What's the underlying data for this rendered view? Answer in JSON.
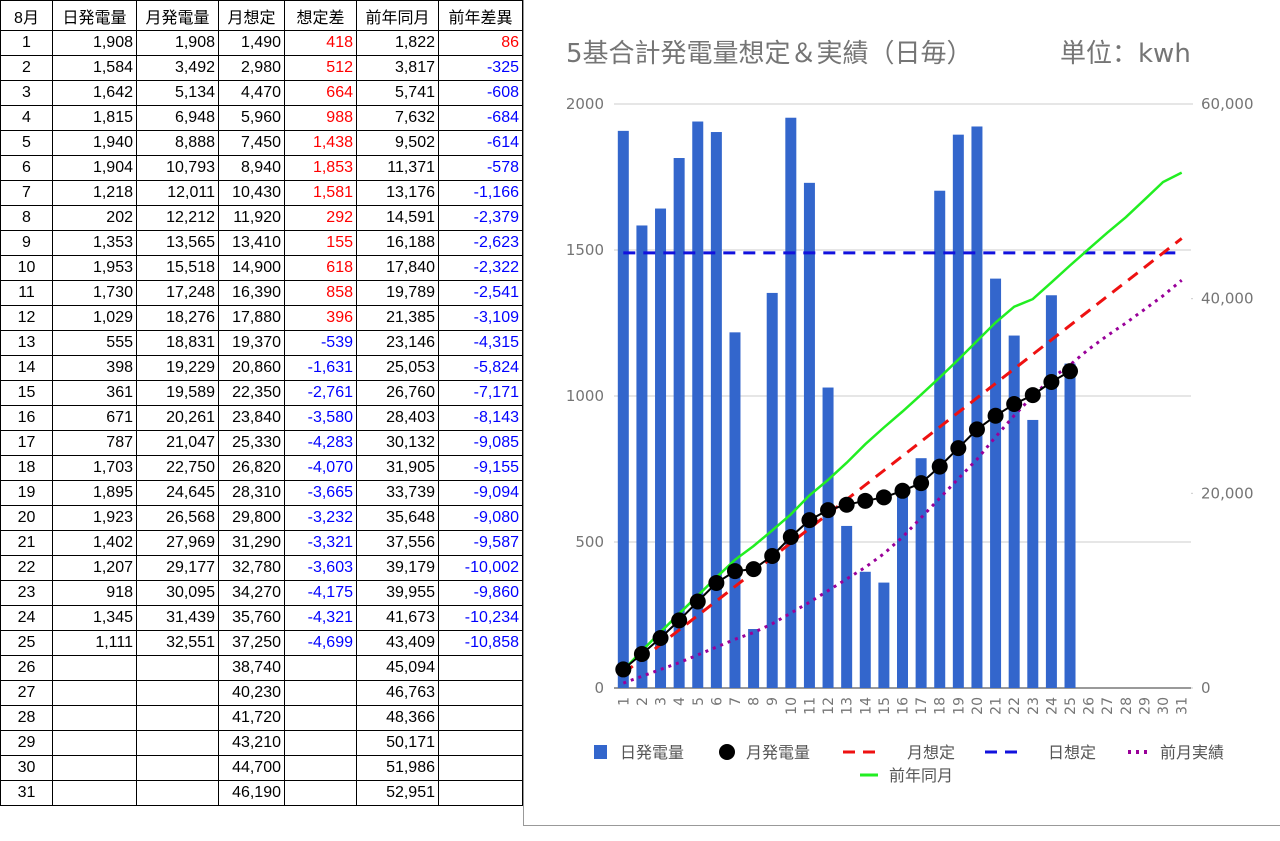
{
  "table": {
    "header": [
      "8月",
      "日発電量",
      "月発電量",
      "月想定",
      "想定差",
      "前年同月",
      "前年差異"
    ],
    "positive_color": "#ff0000",
    "negative_color": "#0000ff",
    "rows": [
      [
        "1",
        "1,908",
        "1,908",
        "1,490",
        "418",
        "1,822",
        "86"
      ],
      [
        "2",
        "1,584",
        "3,492",
        "2,980",
        "512",
        "3,817",
        "-325"
      ],
      [
        "3",
        "1,642",
        "5,134",
        "4,470",
        "664",
        "5,741",
        "-608"
      ],
      [
        "4",
        "1,815",
        "6,948",
        "5,960",
        "988",
        "7,632",
        "-684"
      ],
      [
        "5",
        "1,940",
        "8,888",
        "7,450",
        "1,438",
        "9,502",
        "-614"
      ],
      [
        "6",
        "1,904",
        "10,793",
        "8,940",
        "1,853",
        "11,371",
        "-578"
      ],
      [
        "7",
        "1,218",
        "12,011",
        "10,430",
        "1,581",
        "13,176",
        "-1,166"
      ],
      [
        "8",
        "202",
        "12,212",
        "11,920",
        "292",
        "14,591",
        "-2,379"
      ],
      [
        "9",
        "1,353",
        "13,565",
        "13,410",
        "155",
        "16,188",
        "-2,623"
      ],
      [
        "10",
        "1,953",
        "15,518",
        "14,900",
        "618",
        "17,840",
        "-2,322"
      ],
      [
        "11",
        "1,730",
        "17,248",
        "16,390",
        "858",
        "19,789",
        "-2,541"
      ],
      [
        "12",
        "1,029",
        "18,276",
        "17,880",
        "396",
        "21,385",
        "-3,109"
      ],
      [
        "13",
        "555",
        "18,831",
        "19,370",
        "-539",
        "23,146",
        "-4,315"
      ],
      [
        "14",
        "398",
        "19,229",
        "20,860",
        "-1,631",
        "25,053",
        "-5,824"
      ],
      [
        "15",
        "361",
        "19,589",
        "22,350",
        "-2,761",
        "26,760",
        "-7,171"
      ],
      [
        "16",
        "671",
        "20,261",
        "23,840",
        "-3,580",
        "28,403",
        "-8,143"
      ],
      [
        "17",
        "787",
        "21,047",
        "25,330",
        "-4,283",
        "30,132",
        "-9,085"
      ],
      [
        "18",
        "1,703",
        "22,750",
        "26,820",
        "-4,070",
        "31,905",
        "-9,155"
      ],
      [
        "19",
        "1,895",
        "24,645",
        "28,310",
        "-3,665",
        "33,739",
        "-9,094"
      ],
      [
        "20",
        "1,923",
        "26,568",
        "29,800",
        "-3,232",
        "35,648",
        "-9,080"
      ],
      [
        "21",
        "1,402",
        "27,969",
        "31,290",
        "-3,321",
        "37,556",
        "-9,587"
      ],
      [
        "22",
        "1,207",
        "29,177",
        "32,780",
        "-3,603",
        "39,179",
        "-10,002"
      ],
      [
        "23",
        "918",
        "30,095",
        "34,270",
        "-4,175",
        "39,955",
        "-9,860"
      ],
      [
        "24",
        "1,345",
        "31,439",
        "35,760",
        "-4,321",
        "41,673",
        "-10,234"
      ],
      [
        "25",
        "1,111",
        "32,551",
        "37,250",
        "-4,699",
        "43,409",
        "-10,858"
      ],
      [
        "26",
        null,
        null,
        "38,740",
        null,
        "45,094",
        null
      ],
      [
        "27",
        null,
        null,
        "40,230",
        null,
        "46,763",
        null
      ],
      [
        "28",
        null,
        null,
        "41,720",
        null,
        "48,366",
        null
      ],
      [
        "29",
        null,
        null,
        "43,210",
        null,
        "50,171",
        null
      ],
      [
        "30",
        null,
        null,
        "44,700",
        null,
        "51,986",
        null
      ],
      [
        "31",
        null,
        null,
        "46,190",
        null,
        "52,951",
        null
      ]
    ]
  },
  "chart_data": {
    "type": "combo",
    "title": "5基合計発電量想定＆実績（日毎）",
    "unit_label": "単位：kwh",
    "categories": [
      "1",
      "2",
      "3",
      "4",
      "5",
      "6",
      "7",
      "8",
      "9",
      "10",
      "11",
      "12",
      "13",
      "14",
      "15",
      "16",
      "17",
      "18",
      "19",
      "20",
      "21",
      "22",
      "23",
      "24",
      "25",
      "26",
      "27",
      "28",
      "29",
      "30",
      "31"
    ],
    "ylim": [
      0,
      2000
    ],
    "yticks": [
      0,
      500,
      1000,
      1500,
      2000
    ],
    "y2lim": [
      0,
      60000
    ],
    "y2ticks": [
      0,
      {
        "value": 20000,
        "label": "20,000"
      },
      {
        "value": 40000,
        "label": "40,000"
      },
      {
        "value": 60000,
        "label": "60,000"
      }
    ],
    "grid": true,
    "legend": "bottom",
    "series": [
      {
        "name": "日発電量",
        "style": "bar",
        "color": "#3366cc",
        "values": [
          1908,
          1584,
          1642,
          1815,
          1940,
          1904,
          1218,
          202,
          1353,
          1953,
          1730,
          1029,
          555,
          398,
          361,
          671,
          787,
          1703,
          1895,
          1923,
          1402,
          1207,
          918,
          1345,
          1111,
          null,
          null,
          null,
          null,
          null,
          null
        ]
      },
      {
        "name": "月発電量",
        "style": "line",
        "marker": "circle",
        "color": "#000000",
        "axis": "y2",
        "values": [
          1908,
          3492,
          5134,
          6948,
          8888,
          10793,
          12011,
          12212,
          13565,
          15518,
          17248,
          18276,
          18831,
          19229,
          19589,
          20261,
          21047,
          22750,
          24645,
          26568,
          27969,
          29177,
          30095,
          31439,
          32551,
          null,
          null,
          null,
          null,
          null,
          null
        ]
      },
      {
        "name": "月想定",
        "style": "dashed",
        "color": "#ee1111",
        "axis": "y2",
        "values": [
          1490,
          2980,
          4470,
          5960,
          7450,
          8940,
          10430,
          11920,
          13410,
          14900,
          16390,
          17880,
          19370,
          20860,
          22350,
          23840,
          25330,
          26820,
          28310,
          29800,
          31290,
          32780,
          34270,
          35760,
          37250,
          38740,
          40230,
          41720,
          43210,
          44700,
          46190
        ]
      },
      {
        "name": "日想定",
        "style": "dashed",
        "color": "#1111dd",
        "values": [
          1490,
          1490,
          1490,
          1490,
          1490,
          1490,
          1490,
          1490,
          1490,
          1490,
          1490,
          1490,
          1490,
          1490,
          1490,
          1490,
          1490,
          1490,
          1490,
          1490,
          1490,
          1490,
          1490,
          1490,
          1490,
          1490,
          1490,
          1490,
          1490,
          1490,
          1490
        ]
      },
      {
        "name": "前月実績",
        "style": "dotted",
        "color": "#990099",
        "axis": "y2",
        "values": [
          500,
          1200,
          1900,
          2600,
          3400,
          4200,
          5000,
          5700,
          6600,
          7700,
          8800,
          10000,
          11200,
          12400,
          13800,
          15500,
          17500,
          19500,
          21500,
          23500,
          25800,
          28000,
          30000,
          31800,
          33200,
          34800,
          36200,
          37500,
          38900,
          40300,
          41900
        ]
      },
      {
        "name": "前年同月",
        "style": "line",
        "color": "#22ee22",
        "axis": "y2",
        "values": [
          1822,
          3817,
          5741,
          7632,
          9502,
          11371,
          13176,
          14591,
          16188,
          17840,
          19789,
          21385,
          23146,
          25053,
          26760,
          28403,
          30132,
          31905,
          33739,
          35648,
          37556,
          39179,
          39955,
          41673,
          43409,
          45094,
          46763,
          48366,
          50171,
          51986,
          52951
        ]
      }
    ]
  }
}
